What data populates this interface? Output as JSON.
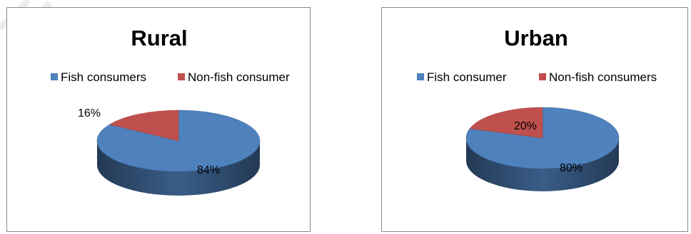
{
  "chart_data": [
    {
      "type": "pie",
      "style": "3d",
      "title": "Rural",
      "legend_position": "top",
      "categories": [
        "Fish consumers",
        "Non-fish consumer"
      ],
      "values": [
        84,
        16
      ],
      "labels": [
        "84%",
        "16%"
      ],
      "colors": [
        "#4f81bd",
        "#c0504d"
      ]
    },
    {
      "type": "pie",
      "style": "3d",
      "title": "Urban",
      "legend_position": "top",
      "categories": [
        "Fish consumer",
        "Non-fish consumers"
      ],
      "values": [
        80,
        20
      ],
      "labels": [
        "80%",
        "20%"
      ],
      "colors": [
        "#4f81bd",
        "#c0504d"
      ]
    }
  ]
}
